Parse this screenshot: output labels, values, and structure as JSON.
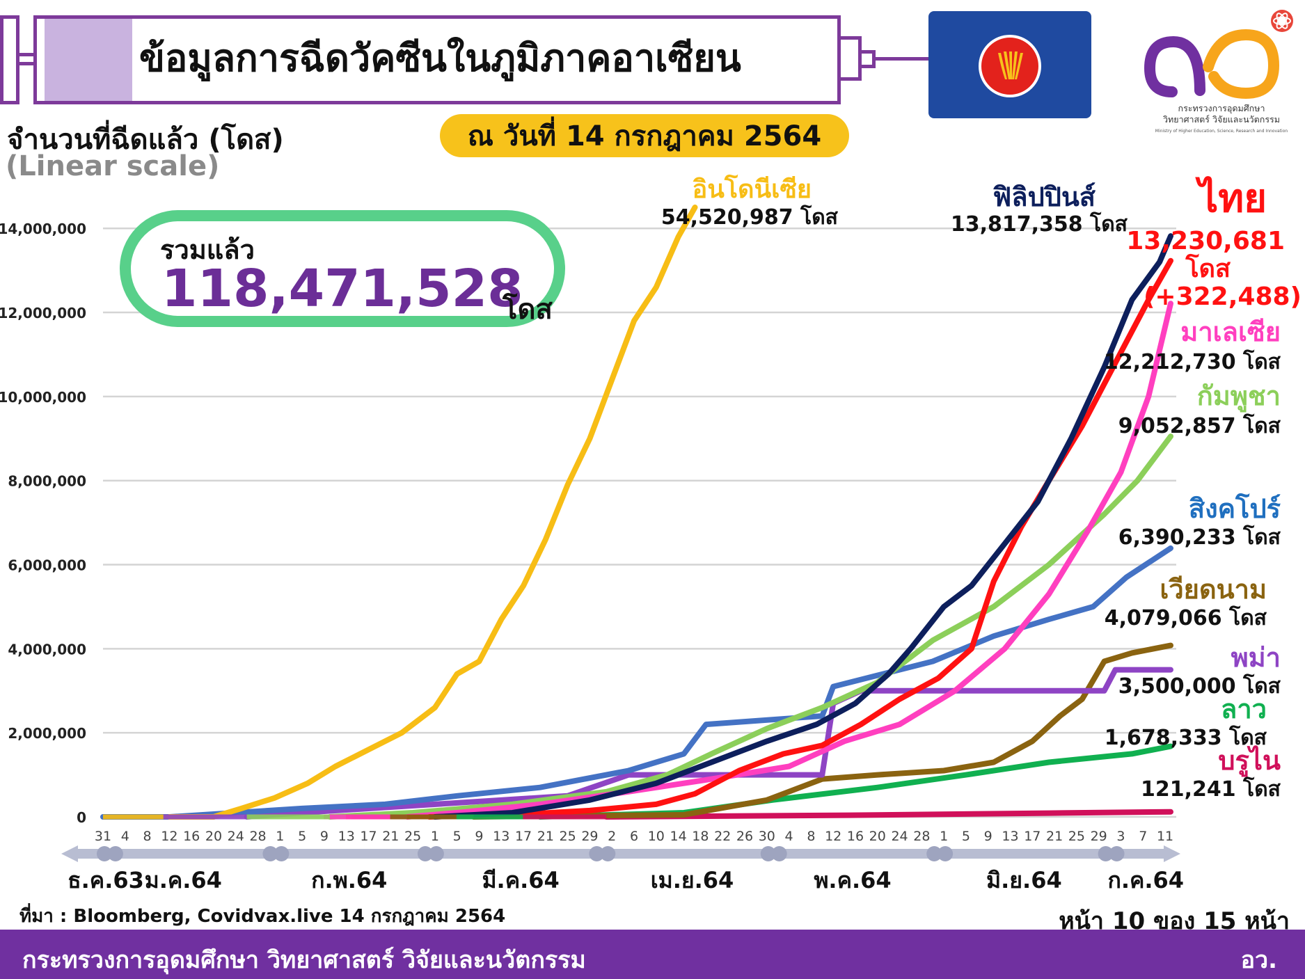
{
  "header": {
    "title": "ข้อมูลการฉีดวัคซีนในภูมิภาคอาเซียน",
    "date": "ณ วันที่ 14 กรกฎาคม 2564",
    "y_axis_title": "จำนวนที่ฉีดแล้ว (โดส)",
    "scale_note": "(Linear scale)"
  },
  "logo": {
    "ministry_th": "กระทรวงการอุดมศึกษา",
    "ministry_th2": "วิทยาศาสตร์ วิจัยและนวัตกรรม",
    "ministry_en": "Ministry of Higher Education, Science, Research and Innovation"
  },
  "total": {
    "label": "รวมแล้ว",
    "value": "118,471,528",
    "unit": "โดส"
  },
  "colors": {
    "purple": "#7030a0",
    "title_border": "#7d3a9a",
    "gold": "#f7c21b",
    "green_box": "#58d08a"
  },
  "footer": {
    "source": "ที่มา : Bloomberg, Covidvax.live 14 กรกฎาคม 2564",
    "page": "หน้า 10 ของ 15 หน้า",
    "ministry": "กระทรวงการอุดมศึกษา วิทยาศาสตร์ วิจัยและนวัตกรรม",
    "abbrev": "อว."
  },
  "chart_data": {
    "type": "line",
    "ylim": [
      0,
      14500000
    ],
    "yticks": [
      "0",
      "2,000,000",
      "4,000,000",
      "6,000,000",
      "8,000,000",
      "10,000,000",
      "12,000,000",
      "14,000,000"
    ],
    "grid": true,
    "xlim": [
      "2020-12-31",
      "2021-07-12"
    ],
    "xticks": [
      {
        "d": "2020-12-31",
        "l": "31"
      },
      {
        "d": "2021-01-04",
        "l": "4"
      },
      {
        "d": "2021-01-08",
        "l": "8"
      },
      {
        "d": "2021-01-12",
        "l": "12"
      },
      {
        "d": "2021-01-16",
        "l": "16"
      },
      {
        "d": "2021-01-20",
        "l": "20"
      },
      {
        "d": "2021-01-24",
        "l": "24"
      },
      {
        "d": "2021-01-28",
        "l": "28"
      },
      {
        "d": "2021-02-01",
        "l": "1"
      },
      {
        "d": "2021-02-05",
        "l": "5"
      },
      {
        "d": "2021-02-09",
        "l": "9"
      },
      {
        "d": "2021-02-13",
        "l": "13"
      },
      {
        "d": "2021-02-17",
        "l": "17"
      },
      {
        "d": "2021-02-21",
        "l": "21"
      },
      {
        "d": "2021-02-25",
        "l": "25"
      },
      {
        "d": "2021-03-01",
        "l": "1"
      },
      {
        "d": "2021-03-05",
        "l": "5"
      },
      {
        "d": "2021-03-09",
        "l": "9"
      },
      {
        "d": "2021-03-13",
        "l": "13"
      },
      {
        "d": "2021-03-17",
        "l": "17"
      },
      {
        "d": "2021-03-21",
        "l": "21"
      },
      {
        "d": "2021-03-25",
        "l": "25"
      },
      {
        "d": "2021-03-29",
        "l": "29"
      },
      {
        "d": "2021-04-02",
        "l": "2"
      },
      {
        "d": "2021-04-06",
        "l": "6"
      },
      {
        "d": "2021-04-10",
        "l": "10"
      },
      {
        "d": "2021-04-14",
        "l": "14"
      },
      {
        "d": "2021-04-18",
        "l": "18"
      },
      {
        "d": "2021-04-22",
        "l": "22"
      },
      {
        "d": "2021-04-26",
        "l": "26"
      },
      {
        "d": "2021-04-30",
        "l": "30"
      },
      {
        "d": "2021-05-04",
        "l": "4"
      },
      {
        "d": "2021-05-08",
        "l": "8"
      },
      {
        "d": "2021-05-12",
        "l": "12"
      },
      {
        "d": "2021-05-16",
        "l": "16"
      },
      {
        "d": "2021-05-20",
        "l": "20"
      },
      {
        "d": "2021-05-24",
        "l": "24"
      },
      {
        "d": "2021-05-28",
        "l": "28"
      },
      {
        "d": "2021-06-01",
        "l": "1"
      },
      {
        "d": "2021-06-05",
        "l": "5"
      },
      {
        "d": "2021-06-09",
        "l": "9"
      },
      {
        "d": "2021-06-13",
        "l": "13"
      },
      {
        "d": "2021-06-17",
        "l": "17"
      },
      {
        "d": "2021-06-21",
        "l": "21"
      },
      {
        "d": "2021-06-25",
        "l": "25"
      },
      {
        "d": "2021-06-29",
        "l": "29"
      },
      {
        "d": "2021-07-03",
        "l": "3"
      },
      {
        "d": "2021-07-07",
        "l": "7"
      },
      {
        "d": "2021-07-11",
        "l": "11"
      }
    ],
    "month_labels": [
      {
        "d": "2020-12-31",
        "l": "ธ.ค.63"
      },
      {
        "d": "2021-01-14",
        "l": "ม.ค.64"
      },
      {
        "d": "2021-02-13",
        "l": "ก.พ.64"
      },
      {
        "d": "2021-03-16",
        "l": "มี.ค.64"
      },
      {
        "d": "2021-04-16",
        "l": "เม.ย.64"
      },
      {
        "d": "2021-05-15",
        "l": "พ.ค.64"
      },
      {
        "d": "2021-06-15",
        "l": "มิ.ย.64"
      },
      {
        "d": "2021-07-07",
        "l": "ก.ค.64"
      }
    ],
    "month_dots": [
      "2020-12-31",
      "2021-01-02",
      "2021-01-30",
      "2021-02-01",
      "2021-02-27",
      "2021-03-01",
      "2021-03-30",
      "2021-04-01",
      "2021-04-30",
      "2021-05-02",
      "2021-05-30",
      "2021-06-01",
      "2021-06-30",
      "2021-07-02"
    ],
    "series": [
      {
        "name": "อินโดนีเซีย",
        "color": "#f7bd15",
        "total": "54,520,987 โดส",
        "points": [
          [
            "2021-01-12",
            0
          ],
          [
            "2021-01-20",
            0
          ],
          [
            "2021-01-25",
            200000
          ],
          [
            "2021-01-31",
            450000
          ],
          [
            "2021-02-06",
            800000
          ],
          [
            "2021-02-11",
            1200000
          ],
          [
            "2021-02-17",
            1600000
          ],
          [
            "2021-02-23",
            2000000
          ],
          [
            "2021-03-01",
            2600000
          ],
          [
            "2021-03-05",
            3400000
          ],
          [
            "2021-03-09",
            3700000
          ],
          [
            "2021-03-13",
            4700000
          ],
          [
            "2021-03-17",
            5500000
          ],
          [
            "2021-03-21",
            6600000
          ],
          [
            "2021-03-25",
            7900000
          ],
          [
            "2021-03-29",
            9000000
          ],
          [
            "2021-04-02",
            10400000
          ],
          [
            "2021-04-06",
            11800000
          ],
          [
            "2021-04-10",
            12600000
          ],
          [
            "2021-04-14",
            13800000
          ],
          [
            "2021-04-17",
            15000000
          ]
        ]
      },
      {
        "name": "ฟิลิปปินส์",
        "color": "#0d1f5c",
        "total": "13,817,358 โดส",
        "points": [
          [
            "2021-03-01",
            0
          ],
          [
            "2021-03-15",
            100000
          ],
          [
            "2021-03-29",
            400000
          ],
          [
            "2021-04-10",
            800000
          ],
          [
            "2021-04-20",
            1300000
          ],
          [
            "2021-04-30",
            1800000
          ],
          [
            "2021-05-09",
            2200000
          ],
          [
            "2021-05-16",
            2700000
          ],
          [
            "2021-05-22",
            3400000
          ],
          [
            "2021-05-26",
            4000000
          ],
          [
            "2021-06-01",
            5000000
          ],
          [
            "2021-06-06",
            5500000
          ],
          [
            "2021-06-12",
            6500000
          ],
          [
            "2021-06-18",
            7500000
          ],
          [
            "2021-06-24",
            9000000
          ],
          [
            "2021-06-30",
            10700000
          ],
          [
            "2021-07-05",
            12300000
          ],
          [
            "2021-07-10",
            13200000
          ],
          [
            "2021-07-12",
            13817358
          ]
        ]
      },
      {
        "name": "ไทย",
        "color": "#ff1111",
        "total": "13,230,681",
        "unit": "โดส",
        "change": "(+322,488)",
        "points": [
          [
            "2021-02-28",
            0
          ],
          [
            "2021-03-15",
            50000
          ],
          [
            "2021-03-29",
            150000
          ],
          [
            "2021-04-10",
            300000
          ],
          [
            "2021-04-17",
            550000
          ],
          [
            "2021-04-25",
            1100000
          ],
          [
            "2021-05-03",
            1500000
          ],
          [
            "2021-05-10",
            1700000
          ],
          [
            "2021-05-17",
            2200000
          ],
          [
            "2021-05-24",
            2800000
          ],
          [
            "2021-05-31",
            3300000
          ],
          [
            "2021-06-06",
            4000000
          ],
          [
            "2021-06-10",
            5600000
          ],
          [
            "2021-06-15",
            6900000
          ],
          [
            "2021-06-20",
            8000000
          ],
          [
            "2021-06-26",
            9300000
          ],
          [
            "2021-07-02",
            10800000
          ],
          [
            "2021-07-08",
            12300000
          ],
          [
            "2021-07-12",
            13230681
          ]
        ]
      },
      {
        "name": "มาเลเซีย",
        "color": "#ff3fbf",
        "total": "12,212,730 โดส",
        "points": [
          [
            "2021-02-24",
            0
          ],
          [
            "2021-03-05",
            100000
          ],
          [
            "2021-03-20",
            300000
          ],
          [
            "2021-04-05",
            600000
          ],
          [
            "2021-04-20",
            900000
          ],
          [
            "2021-05-04",
            1200000
          ],
          [
            "2021-05-14",
            1800000
          ],
          [
            "2021-05-24",
            2200000
          ],
          [
            "2021-06-03",
            3000000
          ],
          [
            "2021-06-12",
            4000000
          ],
          [
            "2021-06-20",
            5300000
          ],
          [
            "2021-06-27",
            6800000
          ],
          [
            "2021-07-03",
            8200000
          ],
          [
            "2021-07-08",
            10000000
          ],
          [
            "2021-07-12",
            12212730
          ]
        ]
      },
      {
        "name": "กัมพูชา",
        "color": "#8ccf5a",
        "total": "9,052,857 โดส",
        "points": [
          [
            "2021-02-10",
            0
          ],
          [
            "2021-02-25",
            100000
          ],
          [
            "2021-03-15",
            300000
          ],
          [
            "2021-04-01",
            600000
          ],
          [
            "2021-04-12",
            1000000
          ],
          [
            "2021-04-20",
            1500000
          ],
          [
            "2021-04-30",
            2100000
          ],
          [
            "2021-05-10",
            2600000
          ],
          [
            "2021-05-20",
            3200000
          ],
          [
            "2021-05-30",
            4200000
          ],
          [
            "2021-06-10",
            5000000
          ],
          [
            "2021-06-20",
            6000000
          ],
          [
            "2021-06-30",
            7200000
          ],
          [
            "2021-07-06",
            8000000
          ],
          [
            "2021-07-12",
            9052857
          ]
        ]
      },
      {
        "name": "สิงคโปร์",
        "color": "#4472c4",
        "total": "6,390,233 โดส",
        "points": [
          [
            "2020-12-31",
            0
          ],
          [
            "2021-01-12",
            0
          ],
          [
            "2021-01-24",
            100000
          ],
          [
            "2021-02-05",
            200000
          ],
          [
            "2021-02-20",
            300000
          ],
          [
            "2021-03-05",
            500000
          ],
          [
            "2021-03-20",
            700000
          ],
          [
            "2021-04-05",
            1100000
          ],
          [
            "2021-04-15",
            1500000
          ],
          [
            "2021-04-19",
            2200000
          ],
          [
            "2021-05-10",
            2400000
          ],
          [
            "2021-05-12",
            3100000
          ],
          [
            "2021-05-30",
            3700000
          ],
          [
            "2021-06-10",
            4300000
          ],
          [
            "2021-06-20",
            4700000
          ],
          [
            "2021-06-28",
            5000000
          ],
          [
            "2021-07-04",
            5700000
          ],
          [
            "2021-07-12",
            6390233
          ]
        ]
      },
      {
        "name": "เวียดนาม",
        "color": "#8a6310",
        "total": "4,079,066 โดส",
        "points": [
          [
            "2021-03-08",
            0
          ],
          [
            "2021-04-15",
            50000
          ],
          [
            "2021-04-30",
            400000
          ],
          [
            "2021-05-10",
            900000
          ],
          [
            "2021-05-20",
            1000000
          ],
          [
            "2021-06-01",
            1100000
          ],
          [
            "2021-06-10",
            1300000
          ],
          [
            "2021-06-17",
            1800000
          ],
          [
            "2021-06-22",
            2400000
          ],
          [
            "2021-06-26",
            2800000
          ],
          [
            "2021-06-30",
            3700000
          ],
          [
            "2021-07-05",
            3900000
          ],
          [
            "2021-07-12",
            4079066
          ]
        ]
      },
      {
        "name": "พม่า",
        "color": "#8e44c4",
        "total": "3,500,000 โดส",
        "points": [
          [
            "2021-01-26",
            0
          ],
          [
            "2021-02-05",
            100000
          ],
          [
            "2021-03-25",
            500000
          ],
          [
            "2021-04-05",
            1000000
          ],
          [
            "2021-05-10",
            1000000
          ],
          [
            "2021-05-12",
            2700000
          ],
          [
            "2021-05-17",
            3000000
          ],
          [
            "2021-06-30",
            3000000
          ],
          [
            "2021-07-02",
            3500000
          ],
          [
            "2021-07-12",
            3500000
          ]
        ]
      },
      {
        "name": "ลาว",
        "color": "#10b050",
        "total": "1,678,333 โดส",
        "points": [
          [
            "2021-03-20",
            0
          ],
          [
            "2021-04-15",
            100000
          ],
          [
            "2021-05-01",
            400000
          ],
          [
            "2021-05-20",
            700000
          ],
          [
            "2021-06-05",
            1000000
          ],
          [
            "2021-06-20",
            1300000
          ],
          [
            "2021-07-05",
            1500000
          ],
          [
            "2021-07-12",
            1678333
          ]
        ]
      },
      {
        "name": "บรูไน",
        "color": "#d0105a",
        "total": "121,241 โดส",
        "points": [
          [
            "2021-04-01",
            0
          ],
          [
            "2021-05-15",
            40000
          ],
          [
            "2021-06-20",
            90000
          ],
          [
            "2021-07-12",
            121241
          ]
        ]
      }
    ]
  }
}
